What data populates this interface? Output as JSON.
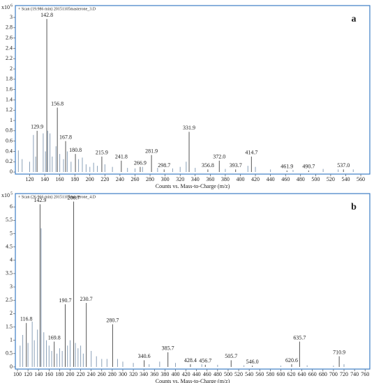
{
  "chart_data": [
    {
      "type": "spectrum",
      "title": "+ Scan (19.986 min) 20151105masterone_3.D",
      "panel_label": "a",
      "y_multiplier": "x10",
      "y_exponent": "6",
      "xlabel": "Counts vs. Mass-to-Charge (m/z)",
      "xlim": [
        101,
        572
      ],
      "xticks": [
        120,
        140,
        160,
        180,
        200,
        220,
        240,
        260,
        280,
        300,
        320,
        340,
        360,
        380,
        400,
        420,
        440,
        460,
        480,
        500,
        520,
        540,
        560
      ],
      "ylim": [
        -0.04,
        3.23
      ],
      "yticks": [
        0,
        0.2,
        0.4,
        0.6,
        0.8,
        1,
        1.2,
        1.4,
        1.6,
        1.8,
        2,
        2.2,
        2.4,
        2.6,
        2.8,
        3
      ],
      "series": [
        {
          "color": "#555555",
          "x": [
            129.9,
            142.8,
            156.8,
            167.8,
            180.8,
            215.9,
            241.8,
            266.9,
            281.9,
            298.7,
            331.9,
            356.8,
            372,
            393.7,
            414.7,
            461.9,
            490.7,
            537
          ],
          "values": [
            0.8,
            2.97,
            1.25,
            0.6,
            0.35,
            0.3,
            0.22,
            0.1,
            0.33,
            0.05,
            0.78,
            0.05,
            0.22,
            0.05,
            0.3,
            0.03,
            0.03,
            0.05
          ],
          "x_labels": [
            "129.9",
            "142.8",
            "156.8",
            "167.8",
            "180.8",
            "215.9",
            "241.8",
            "266.9",
            "281.9",
            "298.7",
            "331.9",
            "356.8",
            "372.0",
            "393.7",
            "414.7",
            "461.9",
            "490.7",
            "537.0"
          ]
        },
        {
          "color": "#8aa0b8",
          "x": [
            105,
            110,
            120,
            125,
            128,
            138,
            141,
            144,
            147,
            150,
            155,
            160,
            165,
            170,
            175,
            185,
            190,
            195,
            200,
            205,
            210,
            220,
            230,
            250,
            260,
            270,
            290,
            310,
            320,
            328,
            340,
            380,
            410,
            420,
            440,
            470,
            510,
            530,
            550
          ],
          "values": [
            0.42,
            0.25,
            0.2,
            0.72,
            0.3,
            0.75,
            0.4,
            0.8,
            0.75,
            0.3,
            0.5,
            0.35,
            0.25,
            0.4,
            0.2,
            0.25,
            0.28,
            0.15,
            0.1,
            0.18,
            0.12,
            0.15,
            0.1,
            0.08,
            0.07,
            0.1,
            0.08,
            0.07,
            0.1,
            0.2,
            0.08,
            0.06,
            0.12,
            0.1,
            0.05,
            0.04,
            0.06,
            0.05,
            0.05
          ]
        }
      ]
    },
    {
      "type": "spectrum",
      "title": "+ Scan (26.966 min) 20151105masterone_4.D",
      "panel_label": "b",
      "y_multiplier": "x10",
      "y_exponent": "5",
      "xlabel": "Counts vs. Mass-to-Charge (m/z)",
      "xlim": [
        96,
        769
      ],
      "xticks": [
        100,
        120,
        140,
        160,
        180,
        200,
        220,
        240,
        260,
        280,
        300,
        320,
        340,
        360,
        380,
        400,
        420,
        440,
        460,
        480,
        500,
        520,
        540,
        560,
        580,
        600,
        620,
        640,
        660,
        680,
        700,
        720,
        740,
        760
      ],
      "ylim": [
        -0.08,
        6.5
      ],
      "yticks": [
        0,
        0.5,
        1,
        1.5,
        2,
        2.5,
        3,
        3.5,
        4,
        4.5,
        5,
        5.5,
        6
      ],
      "series": [
        {
          "color": "#555555",
          "x": [
            116.8,
            142.9,
            169.8,
            190.7,
            206.7,
            230.7,
            280.7,
            340.6,
            385.7,
            428.4,
            456.7,
            505.7,
            546,
            620.6,
            635.7,
            710.9
          ],
          "values": [
            1.65,
            6.1,
            0.95,
            2.35,
            6.2,
            2.4,
            1.6,
            0.25,
            0.55,
            0.1,
            0.08,
            0.25,
            0.05,
            0.1,
            0.95,
            0.4
          ],
          "x_labels": [
            "116.8",
            "142.9",
            "169.8",
            "190.7",
            "206.7",
            "230.7",
            "280.7",
            "340.6",
            "385.7",
            "428.4",
            "456.7",
            "505.7",
            "546.0",
            "620.6",
            "635.7",
            "710.9"
          ]
        },
        {
          "color": "#8aa0b8",
          "x": [
            105,
            110,
            120,
            128,
            132,
            138,
            145,
            150,
            155,
            160,
            165,
            175,
            180,
            185,
            195,
            200,
            210,
            215,
            220,
            225,
            240,
            250,
            260,
            270,
            290,
            300,
            320,
            350,
            370,
            400,
            450,
            480,
            530,
            600,
            650,
            700,
            720
          ],
          "values": [
            0.8,
            1.2,
            0.9,
            1.7,
            1.0,
            1.4,
            5.2,
            1.3,
            1.0,
            0.8,
            0.6,
            0.5,
            0.7,
            0.6,
            0.8,
            1.0,
            0.9,
            0.7,
            0.8,
            0.5,
            0.6,
            0.4,
            0.3,
            0.3,
            0.3,
            0.2,
            0.15,
            0.1,
            0.2,
            0.15,
            0.1,
            0.08,
            0.06,
            0.05,
            0.06,
            0.05,
            0.1
          ]
        }
      ]
    }
  ]
}
